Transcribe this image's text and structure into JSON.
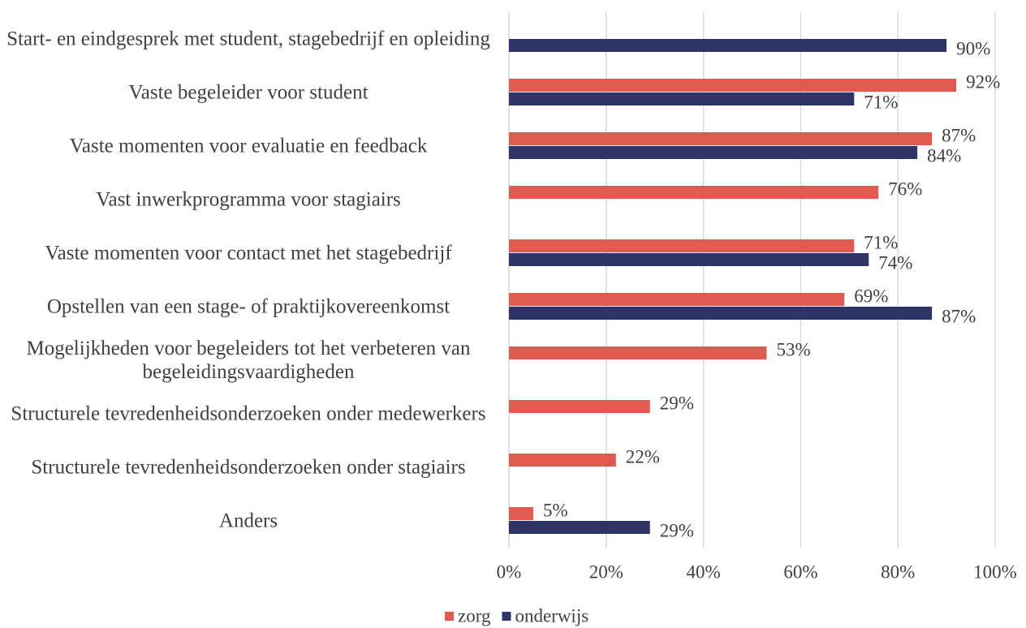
{
  "chart_data": {
    "type": "bar",
    "orientation": "horizontal",
    "categories": [
      "Start- en eindgesprek met student, stagebedrijf en opleiding",
      "Vaste begeleider voor student",
      "Vaste momenten voor evaluatie en feedback",
      "Vast inwerkprogramma voor stagiairs",
      "Vaste momenten voor contact met het stagebedrijf",
      "Opstellen van een stage- of praktijkovereenkomst",
      "Mogelijkheden voor begeleiders tot het verbeteren van begeleidingsvaardigheden",
      "Structurele tevredenheidsonderzoeken onder medewerkers",
      "Structurele tevredenheidsonderzoeken onder stagiairs",
      "Anders"
    ],
    "series": [
      {
        "name": "zorg",
        "color": "#e05a50",
        "values": [
          null,
          92,
          87,
          76,
          71,
          69,
          53,
          29,
          22,
          5
        ],
        "value_labels": [
          null,
          "92%",
          "87%",
          "76%",
          "71%",
          "69%",
          "53%",
          "29%",
          "22%",
          "5%"
        ]
      },
      {
        "name": "onderwijs",
        "color": "#2e3566",
        "values": [
          90,
          71,
          84,
          null,
          74,
          87,
          null,
          null,
          null,
          29
        ],
        "value_labels": [
          "90%",
          "71%",
          "84%",
          null,
          "74%",
          "87%",
          null,
          null,
          null,
          "29%"
        ]
      }
    ],
    "xlim": [
      0,
      100
    ],
    "xticks": [
      {
        "value": 0,
        "label": "0%"
      },
      {
        "value": 20,
        "label": "20%"
      },
      {
        "value": 40,
        "label": "40%"
      },
      {
        "value": 60,
        "label": "60%"
      },
      {
        "value": 80,
        "label": "80%"
      },
      {
        "value": 100,
        "label": "100%"
      }
    ],
    "grid": true,
    "legend": "bottom"
  }
}
